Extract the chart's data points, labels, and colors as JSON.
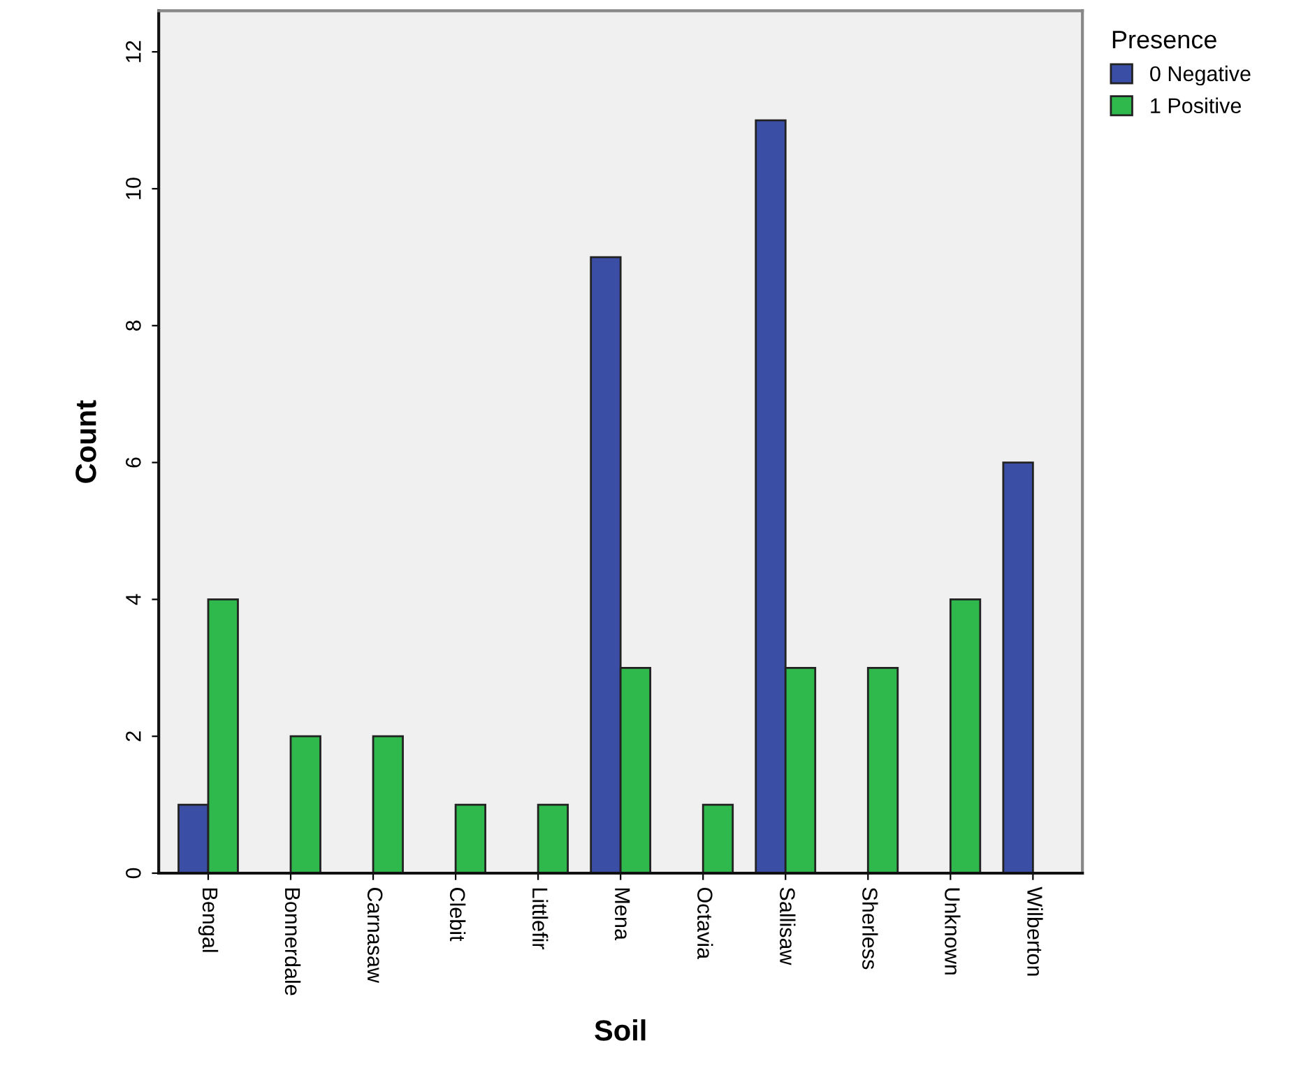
{
  "chart_data": {
    "type": "bar",
    "xlabel": "Soil",
    "ylabel": "Count",
    "legend_title": "Presence",
    "legend": "top right",
    "categories": [
      "Bengal",
      "Bonnerdale",
      "Carnasaw",
      "Clebit",
      "Littlefir",
      "Mena",
      "Octavia",
      "Sallisaw",
      "Sherless",
      "Unknown",
      "Wilberton"
    ],
    "series": [
      {
        "name": "0 Negative",
        "color": "#3b4ea6",
        "values": [
          1,
          null,
          null,
          null,
          null,
          9,
          null,
          11,
          null,
          null,
          6
        ]
      },
      {
        "name": "1 Positive",
        "color": "#2fb84b",
        "values": [
          4,
          2,
          2,
          1,
          1,
          3,
          1,
          3,
          3,
          4,
          null
        ]
      }
    ],
    "ylim": [
      0,
      12.6
    ],
    "yticks": [
      0,
      2,
      4,
      6,
      8,
      10,
      12
    ],
    "grid": false
  }
}
